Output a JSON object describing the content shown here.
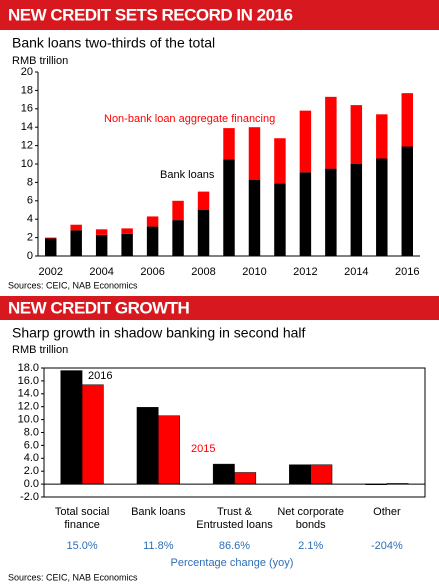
{
  "chart_data": [
    {
      "type": "bar",
      "stacked": true,
      "title": "NEW CREDIT SETS RECORD IN 2016",
      "subtitle": "Bank loans two-thirds of the total",
      "y_label": "RMB trillion",
      "source": "Sources: CEIC, NAB Economics",
      "categories": [
        "2002",
        null,
        "2004",
        null,
        "2006",
        null,
        "2008",
        null,
        "2010",
        null,
        "2012",
        null,
        "2014",
        null,
        "2016"
      ],
      "series": [
        {
          "name": "Bank loans",
          "color": "#000000",
          "values": [
            1.9,
            2.8,
            2.3,
            2.4,
            3.2,
            3.9,
            5.0,
            10.5,
            8.3,
            7.9,
            9.1,
            9.5,
            10.0,
            10.6,
            11.9
          ]
        },
        {
          "name": "Non-bank loan aggregate financing",
          "color": "#ff0000",
          "values": [
            0.1,
            0.6,
            0.6,
            0.6,
            1.1,
            2.1,
            2.0,
            3.4,
            5.7,
            4.9,
            6.7,
            7.8,
            6.4,
            4.8,
            5.8
          ]
        }
      ],
      "ylim": [
        0,
        20
      ],
      "yticks": [
        0,
        2,
        4,
        6,
        8,
        10,
        12,
        14,
        16,
        18,
        20
      ],
      "grid": false
    },
    {
      "type": "bar",
      "stacked": false,
      "title": "NEW CREDIT GROWTH",
      "subtitle": "Sharp growth in shadow banking in second half",
      "y_label": "RMB trillion",
      "source": "Sources: CEIC, NAB Economics",
      "categories": [
        [
          "Total social",
          "finance"
        ],
        [
          "Bank loans"
        ],
        [
          "Trust &",
          "Entrusted loans"
        ],
        [
          "Net corporate",
          "bonds"
        ],
        [
          "Other"
        ]
      ],
      "series": [
        {
          "name": "2016",
          "color": "#000000",
          "values": [
            17.6,
            11.9,
            3.1,
            3.0,
            -0.1
          ]
        },
        {
          "name": "2015",
          "color": "#ff0000",
          "values": [
            15.4,
            10.6,
            1.8,
            3.0,
            0.1
          ]
        }
      ],
      "percentage_change": {
        "label": "Percentage change (yoy)",
        "values": [
          15.0,
          11.8,
          86.6,
          2.1,
          -204
        ],
        "value_labels": [
          "15.0%",
          "11.8%",
          "86.6%",
          "2.1%",
          "-204%"
        ]
      },
      "ylim": [
        -2,
        18
      ],
      "yticks": [
        {
          "value": -2,
          "label": "-2.0"
        },
        {
          "value": 0,
          "label": "0.0"
        },
        {
          "value": 2,
          "label": "2.0"
        },
        {
          "value": 4,
          "label": "4.0"
        },
        {
          "value": 6,
          "label": "6.0"
        },
        {
          "value": 8,
          "label": "8.0"
        },
        {
          "value": 10,
          "label": "10.0"
        },
        {
          "value": 12,
          "label": "12.0"
        },
        {
          "value": 14,
          "label": "14.0"
        },
        {
          "value": 16,
          "label": "16.0"
        },
        {
          "value": 18,
          "label": "18.0"
        }
      ],
      "grid": false
    }
  ]
}
